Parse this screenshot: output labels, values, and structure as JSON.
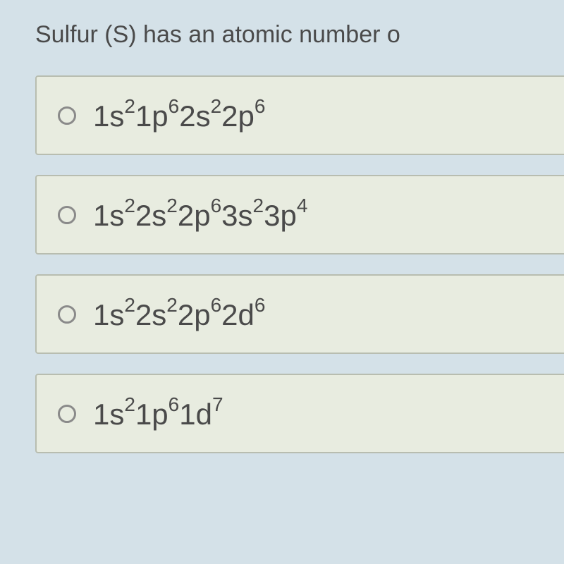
{
  "question": {
    "text": "Sulfur (S) has an atomic number o"
  },
  "options": [
    {
      "parts": [
        {
          "base": "1s",
          "sup": "2"
        },
        {
          "base": "1p",
          "sup": "6"
        },
        {
          "base": "2s",
          "sup": "2"
        },
        {
          "base": "2p",
          "sup": "6"
        }
      ]
    },
    {
      "parts": [
        {
          "base": "1s",
          "sup": "2"
        },
        {
          "base": "2s",
          "sup": "2"
        },
        {
          "base": "2p",
          "sup": "6"
        },
        {
          "base": "3s",
          "sup": "2"
        },
        {
          "base": "3p",
          "sup": "4"
        }
      ]
    },
    {
      "parts": [
        {
          "base": "1s",
          "sup": "2"
        },
        {
          "base": "2s",
          "sup": "2"
        },
        {
          "base": "2p",
          "sup": "6"
        },
        {
          "base": "2d",
          "sup": "6"
        }
      ]
    },
    {
      "parts": [
        {
          "base": "1s",
          "sup": "2"
        },
        {
          "base": "1p",
          "sup": "6"
        },
        {
          "base": "1d",
          "sup": "7"
        }
      ]
    }
  ],
  "colors": {
    "background": "#d4e1e8",
    "option_bg": "#e8ece0",
    "option_border": "#b8bdb0",
    "text": "#4a4a4a",
    "radio_border": "#8a8a8a"
  }
}
